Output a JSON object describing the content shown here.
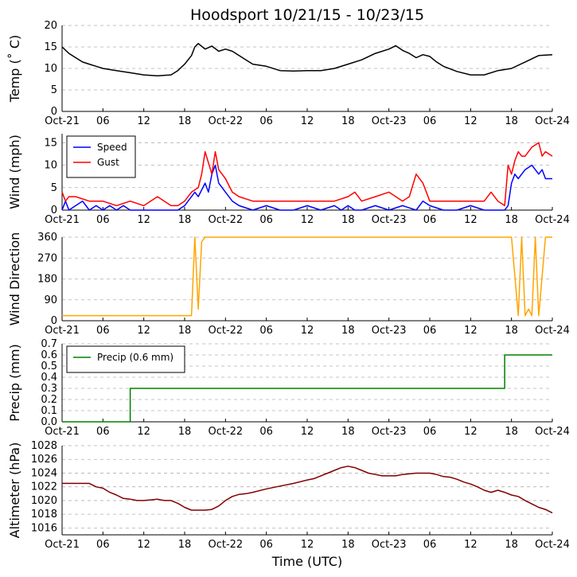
{
  "title": "Hoodsport 10/21/15 - 10/23/15",
  "xlabel": "Time (UTC)",
  "x_tick_labels": [
    "Oct-21",
    "06",
    "12",
    "18",
    "Oct-22",
    "06",
    "12",
    "18",
    "Oct-23",
    "06",
    "12",
    "18",
    "Oct-24"
  ],
  "colors": {
    "temp": "#000000",
    "speed": "#0000ff",
    "gust": "#ff0000",
    "direction": "#ffa500",
    "precip": "#008000",
    "altimeter": "#800000"
  },
  "chart_data": [
    {
      "name": "temp",
      "type": "line",
      "ylabel": "Temp (˚ C)",
      "ylim": [
        0,
        20
      ],
      "yticks": [
        0,
        5,
        10,
        15,
        20
      ],
      "x_unit": "hours since Oct-21 00 UTC",
      "series": [
        {
          "name": "Temp",
          "x": [
            0,
            1,
            2,
            3,
            4,
            5,
            6,
            8,
            10,
            12,
            14,
            16,
            17,
            18,
            19,
            19.5,
            20,
            21,
            22,
            23,
            24,
            25,
            26,
            27,
            28,
            30,
            32,
            34,
            36,
            38,
            40,
            42,
            44,
            46,
            48,
            49,
            50,
            51,
            52,
            53,
            54,
            55,
            56,
            58,
            60,
            62,
            64,
            66,
            68,
            70,
            72
          ],
          "values": [
            15,
            13.5,
            12.5,
            11.5,
            11,
            10.5,
            10,
            9.5,
            9,
            8.5,
            8.3,
            8.5,
            9.5,
            11,
            13,
            15,
            15.8,
            14.5,
            15.2,
            14,
            14.5,
            14,
            13,
            12,
            11,
            10.5,
            9.5,
            9.4,
            9.5,
            9.5,
            10,
            11,
            12,
            13.5,
            14.5,
            15.3,
            14.2,
            13.5,
            12.5,
            13.2,
            12.8,
            11.5,
            10.5,
            9.3,
            8.5,
            8.5,
            9.5,
            10,
            11.5,
            13,
            13.2
          ]
        }
      ]
    },
    {
      "name": "wind",
      "type": "line",
      "ylabel": "Wind (mph)",
      "ylim": [
        0,
        17
      ],
      "yticks": [
        0,
        5,
        10,
        15
      ],
      "legend": [
        "Speed",
        "Gust"
      ],
      "series": [
        {
          "name": "Speed",
          "x": [
            0,
            0.5,
            1,
            2,
            3,
            4,
            5,
            6,
            7,
            8,
            9,
            10,
            12,
            14,
            16,
            17,
            18,
            18.5,
            19,
            19.5,
            20,
            21,
            21.5,
            22,
            22.5,
            23,
            24,
            25,
            26,
            28,
            30,
            32,
            34,
            36,
            38,
            40,
            41,
            42,
            43,
            44,
            46,
            48,
            50,
            52,
            53,
            54,
            56,
            58,
            60,
            62,
            64,
            65,
            65.5,
            66,
            66.5,
            67,
            68,
            69,
            70,
            70.5,
            71,
            72
          ],
          "values": [
            0,
            2,
            0,
            1,
            2,
            0,
            1,
            0,
            1,
            0,
            1,
            0,
            0,
            0,
            0,
            0,
            1,
            2,
            3,
            4,
            3,
            6,
            4,
            8,
            10,
            6,
            4,
            2,
            1,
            0,
            1,
            0,
            0,
            1,
            0,
            1,
            0,
            1,
            0,
            0,
            1,
            0,
            1,
            0,
            2,
            1,
            0,
            0,
            1,
            0,
            0,
            0,
            1,
            6,
            8,
            7,
            9,
            10,
            8,
            9,
            7,
            7
          ]
        },
        {
          "name": "Gust",
          "x": [
            0,
            0.5,
            1,
            2,
            4,
            6,
            8,
            10,
            12,
            14,
            16,
            17,
            18,
            19,
            20,
            20.5,
            21,
            22,
            22.5,
            23,
            24,
            25,
            26,
            28,
            30,
            32,
            34,
            36,
            38,
            40,
            42,
            43,
            44,
            46,
            48,
            50,
            51,
            52,
            53,
            54,
            56,
            58,
            60,
            62,
            63,
            64,
            65,
            65.5,
            66,
            66.5,
            67,
            67.5,
            68,
            69,
            70,
            70.5,
            71,
            72
          ],
          "values": [
            4,
            2,
            3,
            3,
            2,
            2,
            1,
            2,
            1,
            3,
            1,
            1,
            2,
            4,
            5,
            8,
            13,
            8,
            13,
            9,
            7,
            4,
            3,
            2,
            2,
            2,
            2,
            2,
            2,
            2,
            3,
            4,
            2,
            3,
            4,
            2,
            3,
            8,
            6,
            2,
            2,
            2,
            2,
            2,
            4,
            2,
            1,
            10,
            8,
            11,
            13,
            12,
            12,
            14,
            15,
            12,
            13,
            12
          ]
        }
      ]
    },
    {
      "name": "direction",
      "type": "line",
      "ylabel": "Wind Direction",
      "ylim": [
        0,
        360
      ],
      "yticks": [
        0,
        90,
        180,
        270,
        360
      ],
      "series": [
        {
          "name": "Direction",
          "x": [
            0,
            1,
            2,
            3,
            4,
            5,
            6,
            7,
            8,
            9,
            10,
            12,
            14,
            16,
            18,
            19,
            19.5,
            20,
            20.5,
            21,
            22,
            24,
            26,
            28,
            30,
            32,
            34,
            36,
            38,
            40,
            42,
            44,
            46,
            48,
            50,
            52,
            54,
            56,
            58,
            60,
            62,
            64,
            66,
            67,
            67.5,
            68,
            68.5,
            69,
            69.5,
            70,
            71,
            72
          ],
          "values": [
            22,
            22,
            22,
            22,
            22,
            22,
            22,
            22,
            22,
            22,
            22,
            22,
            22,
            22,
            22,
            22,
            360,
            50,
            340,
            360,
            360,
            360,
            360,
            360,
            360,
            360,
            360,
            360,
            360,
            360,
            360,
            360,
            360,
            360,
            360,
            360,
            360,
            360,
            360,
            360,
            360,
            360,
            360,
            22,
            360,
            22,
            50,
            22,
            360,
            22,
            360,
            360
          ]
        }
      ]
    },
    {
      "name": "precip",
      "type": "line",
      "ylabel": "Precip (mm)",
      "ylim": [
        0,
        0.7
      ],
      "yticks": [
        0.0,
        0.1,
        0.2,
        0.3,
        0.4,
        0.5,
        0.6,
        0.7
      ],
      "ytick_labels": [
        "0.0",
        "0.1",
        "0.2",
        "0.3",
        "0.4",
        "0.5",
        "0.6",
        "0.7"
      ],
      "legend": [
        "Precip (0.6 mm)"
      ],
      "series": [
        {
          "name": "Precip (0.6 mm)",
          "x": [
            0,
            10,
            10,
            65,
            65,
            72
          ],
          "values": [
            0,
            0,
            0.3,
            0.3,
            0.6,
            0.6
          ]
        }
      ]
    },
    {
      "name": "altimeter",
      "type": "line",
      "ylabel": "Altimeter (hPa)",
      "ylim": [
        1015,
        1028
      ],
      "yticks": [
        1016,
        1018,
        1020,
        1022,
        1024,
        1026,
        1028
      ],
      "series": [
        {
          "name": "Altimeter",
          "x": [
            0,
            2,
            4,
            5,
            6,
            7,
            8,
            9,
            10,
            11,
            12,
            13,
            14,
            15,
            16,
            17,
            18,
            19,
            20,
            21,
            22,
            23,
            24,
            25,
            26,
            27,
            28,
            30,
            32,
            34,
            36,
            37,
            38,
            39,
            40,
            41,
            42,
            43,
            44,
            45,
            46,
            47,
            48,
            49,
            50,
            52,
            54,
            55,
            56,
            57,
            58,
            59,
            60,
            61,
            62,
            63,
            64,
            65,
            66,
            67,
            68,
            69,
            70,
            71,
            72
          ],
          "values": [
            1022.5,
            1022.5,
            1022.5,
            1022,
            1021.8,
            1021.2,
            1020.8,
            1020.3,
            1020.2,
            1020,
            1020,
            1020.1,
            1020.2,
            1020,
            1020,
            1019.6,
            1019,
            1018.6,
            1018.6,
            1018.6,
            1018.7,
            1019.2,
            1020,
            1020.6,
            1020.9,
            1021,
            1021.2,
            1021.7,
            1022.1,
            1022.5,
            1023,
            1023.2,
            1023.6,
            1024,
            1024.4,
            1024.8,
            1025,
            1024.8,
            1024.4,
            1024,
            1023.8,
            1023.6,
            1023.6,
            1023.6,
            1023.8,
            1024,
            1024,
            1023.8,
            1023.5,
            1023.4,
            1023.1,
            1022.7,
            1022.4,
            1022,
            1021.5,
            1021.2,
            1021.5,
            1021.2,
            1020.8,
            1020.6,
            1020,
            1019.5,
            1019,
            1018.7,
            1018.2
          ]
        }
      ]
    }
  ]
}
